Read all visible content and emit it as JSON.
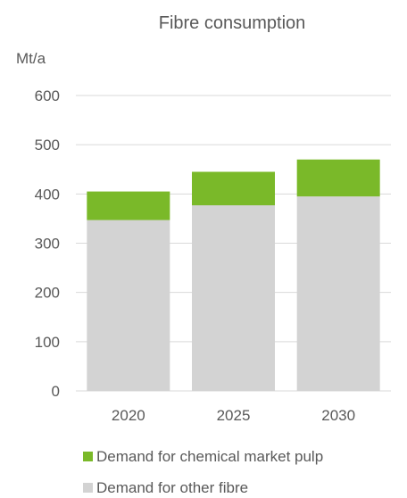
{
  "chart_data": {
    "type": "bar",
    "stacked": true,
    "title": "Fibre consumption",
    "ylabel": "Mt/a",
    "xlabel": "",
    "categories": [
      "2020",
      "2025",
      "2030"
    ],
    "ylim": [
      0,
      600
    ],
    "yticks": [
      0,
      100,
      200,
      300,
      400,
      500,
      600
    ],
    "grid": true,
    "legend_position": "bottom",
    "series": [
      {
        "name": "Demand for other fibre",
        "color": "#d3d3d3",
        "values": [
          347,
          377,
          395
        ]
      },
      {
        "name": "Demand for chemical market pulp",
        "color": "#7ab929",
        "values": [
          58,
          68,
          75
        ]
      }
    ],
    "legend_order": [
      1,
      0
    ]
  }
}
